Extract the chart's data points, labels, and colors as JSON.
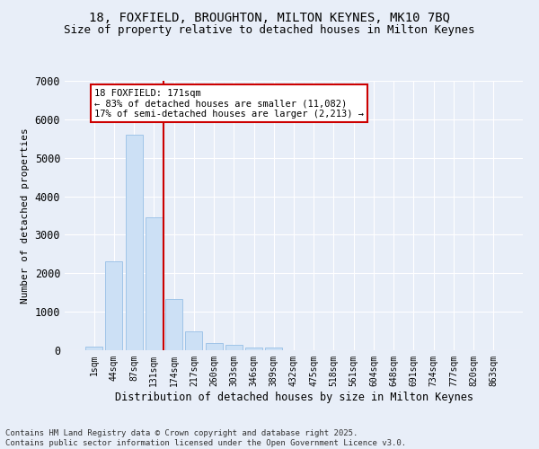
{
  "title1": "18, FOXFIELD, BROUGHTON, MILTON KEYNES, MK10 7BQ",
  "title2": "Size of property relative to detached houses in Milton Keynes",
  "xlabel": "Distribution of detached houses by size in Milton Keynes",
  "ylabel": "Number of detached properties",
  "bar_labels": [
    "1sqm",
    "44sqm",
    "87sqm",
    "131sqm",
    "174sqm",
    "217sqm",
    "260sqm",
    "303sqm",
    "346sqm",
    "389sqm",
    "432sqm",
    "475sqm",
    "518sqm",
    "561sqm",
    "604sqm",
    "648sqm",
    "691sqm",
    "734sqm",
    "777sqm",
    "820sqm",
    "863sqm"
  ],
  "bar_values": [
    100,
    2300,
    5600,
    3450,
    1320,
    500,
    185,
    130,
    75,
    60,
    0,
    0,
    0,
    0,
    0,
    0,
    0,
    0,
    0,
    0,
    0
  ],
  "bar_color": "#cce0f5",
  "bar_edgecolor": "#a0c4e8",
  "vline_color": "#cc0000",
  "vline_pos": 3.5,
  "annotation_text": "18 FOXFIELD: 171sqm\n← 83% of detached houses are smaller (11,082)\n17% of semi-detached houses are larger (2,213) →",
  "annotation_box_color": "#cc0000",
  "ylim": [
    0,
    7000
  ],
  "yticks": [
    0,
    1000,
    2000,
    3000,
    4000,
    5000,
    6000,
    7000
  ],
  "bg_color": "#e8eef8",
  "footer": "Contains HM Land Registry data © Crown copyright and database right 2025.\nContains public sector information licensed under the Open Government Licence v3.0.",
  "title_fontsize": 10,
  "subtitle_fontsize": 9
}
